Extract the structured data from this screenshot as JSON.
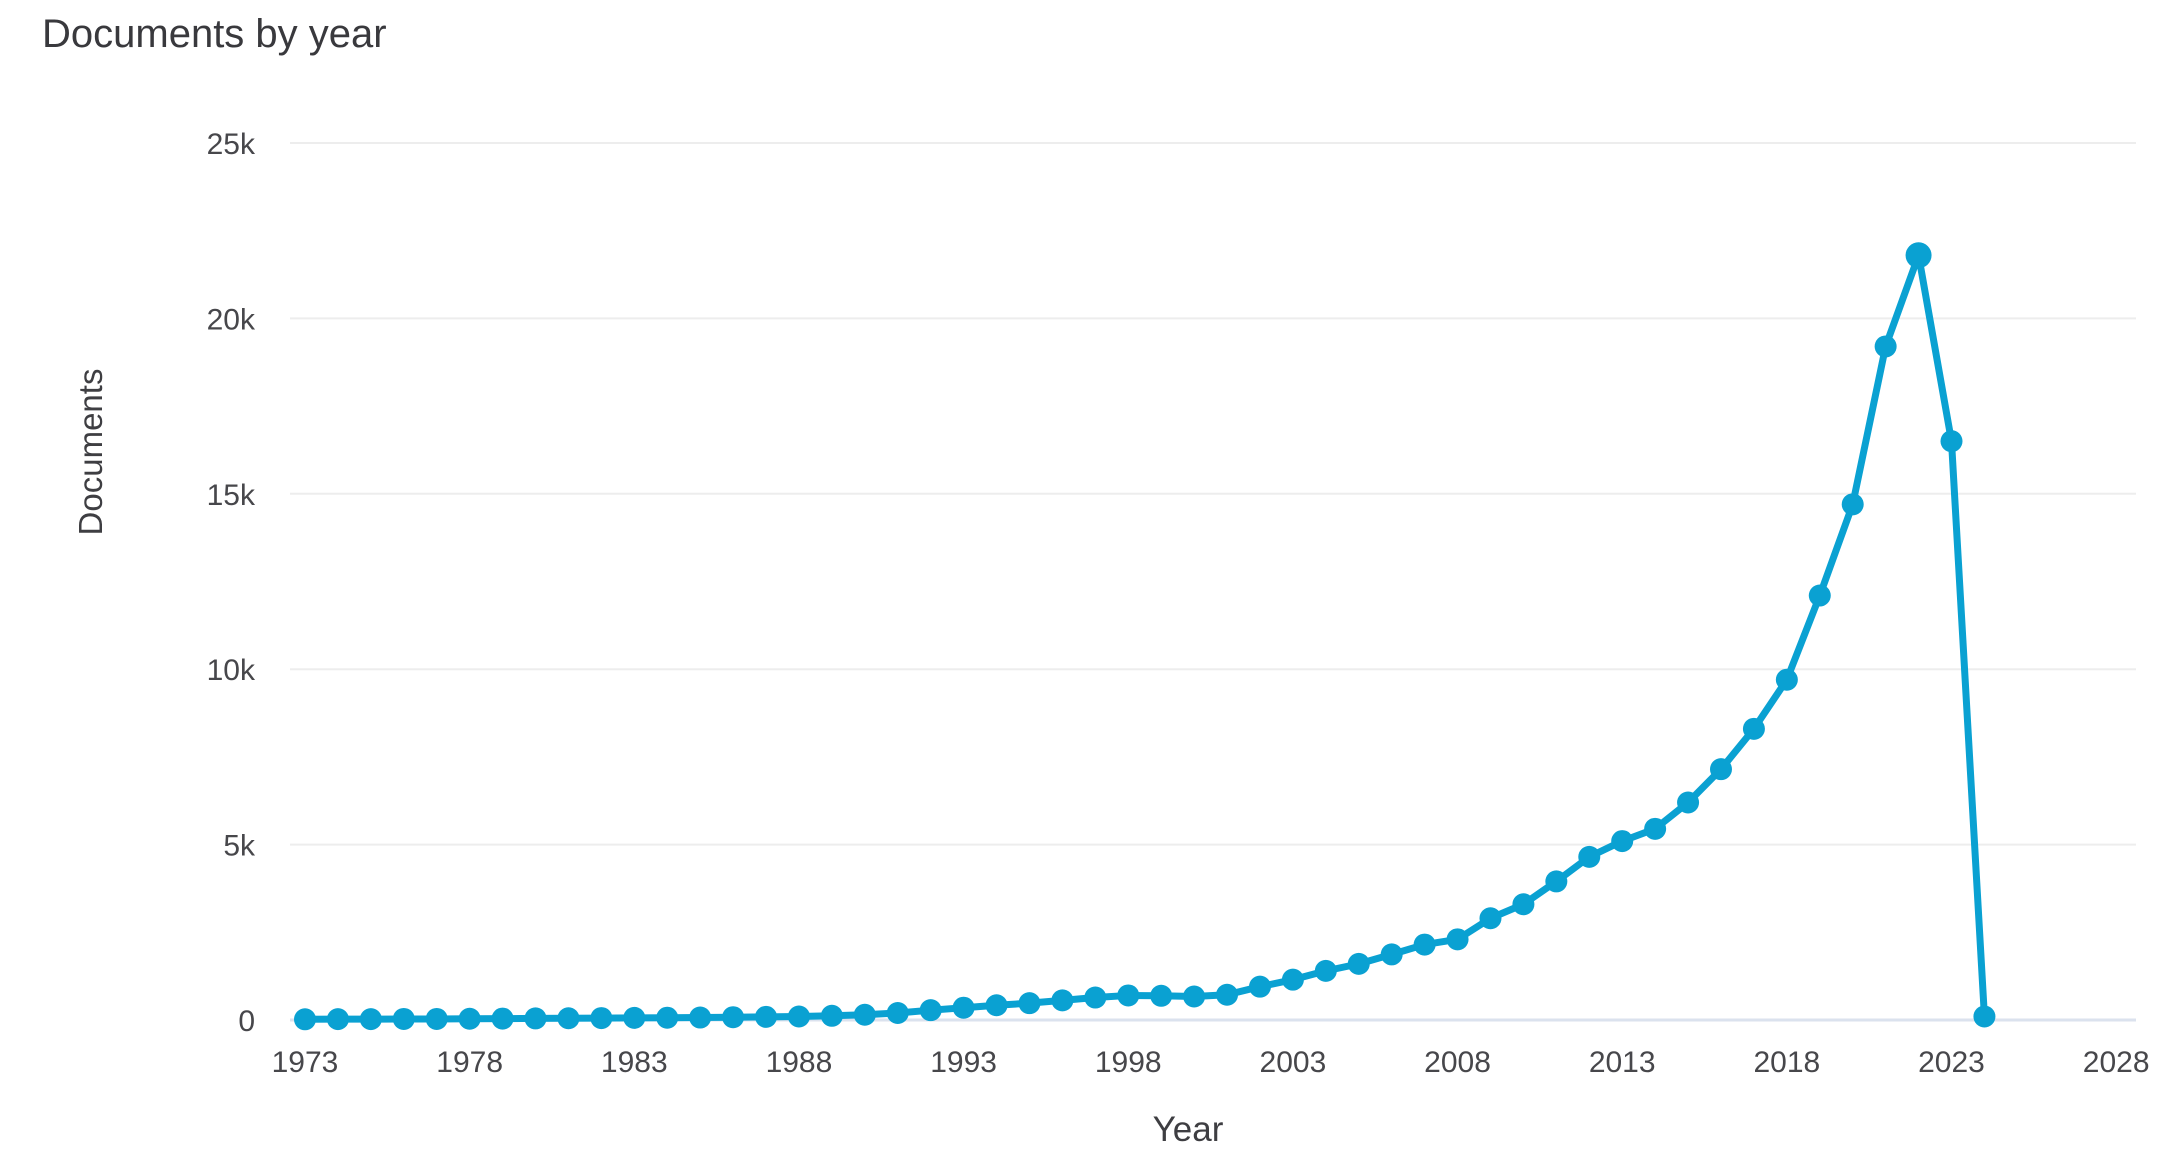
{
  "title": "Documents by year",
  "chart_data": {
    "type": "line",
    "title": "Documents by year",
    "xlabel": "Year",
    "ylabel": "Documents",
    "xlim": [
      1973,
      2028
    ],
    "ylim": [
      0,
      25000
    ],
    "grid": "horizontal-only",
    "legend": "none",
    "x_tick_labels": [
      "1973",
      "1978",
      "1983",
      "1988",
      "1993",
      "1998",
      "2003",
      "2008",
      "2013",
      "2018",
      "2023",
      "2028"
    ],
    "x_tick_values": [
      1973,
      1978,
      1983,
      1988,
      1993,
      1998,
      2003,
      2008,
      2013,
      2018,
      2023,
      2028
    ],
    "y_tick_labels": [
      "0",
      "5k",
      "10k",
      "15k",
      "20k",
      "25k"
    ],
    "y_tick_values": [
      0,
      5000,
      10000,
      15000,
      20000,
      25000
    ],
    "series": [
      {
        "name": "Documents",
        "x": [
          1973,
          1974,
          1975,
          1976,
          1977,
          1978,
          1979,
          1980,
          1981,
          1982,
          1983,
          1984,
          1985,
          1986,
          1987,
          1988,
          1989,
          1990,
          1991,
          1992,
          1993,
          1994,
          1995,
          1996,
          1997,
          1998,
          1999,
          2000,
          2001,
          2002,
          2003,
          2004,
          2005,
          2006,
          2007,
          2008,
          2009,
          2010,
          2011,
          2012,
          2013,
          2014,
          2015,
          2016,
          2017,
          2018,
          2019,
          2020,
          2021,
          2022,
          2023,
          2024
        ],
        "y": [
          20,
          25,
          25,
          30,
          30,
          35,
          40,
          45,
          50,
          55,
          60,
          65,
          70,
          80,
          90,
          100,
          120,
          150,
          200,
          280,
          350,
          420,
          480,
          560,
          640,
          700,
          690,
          670,
          720,
          950,
          1150,
          1400,
          1600,
          1870,
          2150,
          2300,
          2900,
          3300,
          3950,
          4650,
          5100,
          5450,
          6200,
          7150,
          8300,
          9700,
          12100,
          14700,
          19200,
          21800,
          16500,
          100
        ]
      }
    ],
    "annotations": {
      "peak": {
        "year": 2022,
        "value": 21800
      }
    }
  },
  "colors": {
    "line": "#0aa1d2",
    "marker": "#0aa1d2",
    "gridline": "#ededed",
    "zero_line": "#dbe2ee",
    "tick_text": "#47474b",
    "title_text": "#39393d",
    "background": "#ffffff"
  }
}
